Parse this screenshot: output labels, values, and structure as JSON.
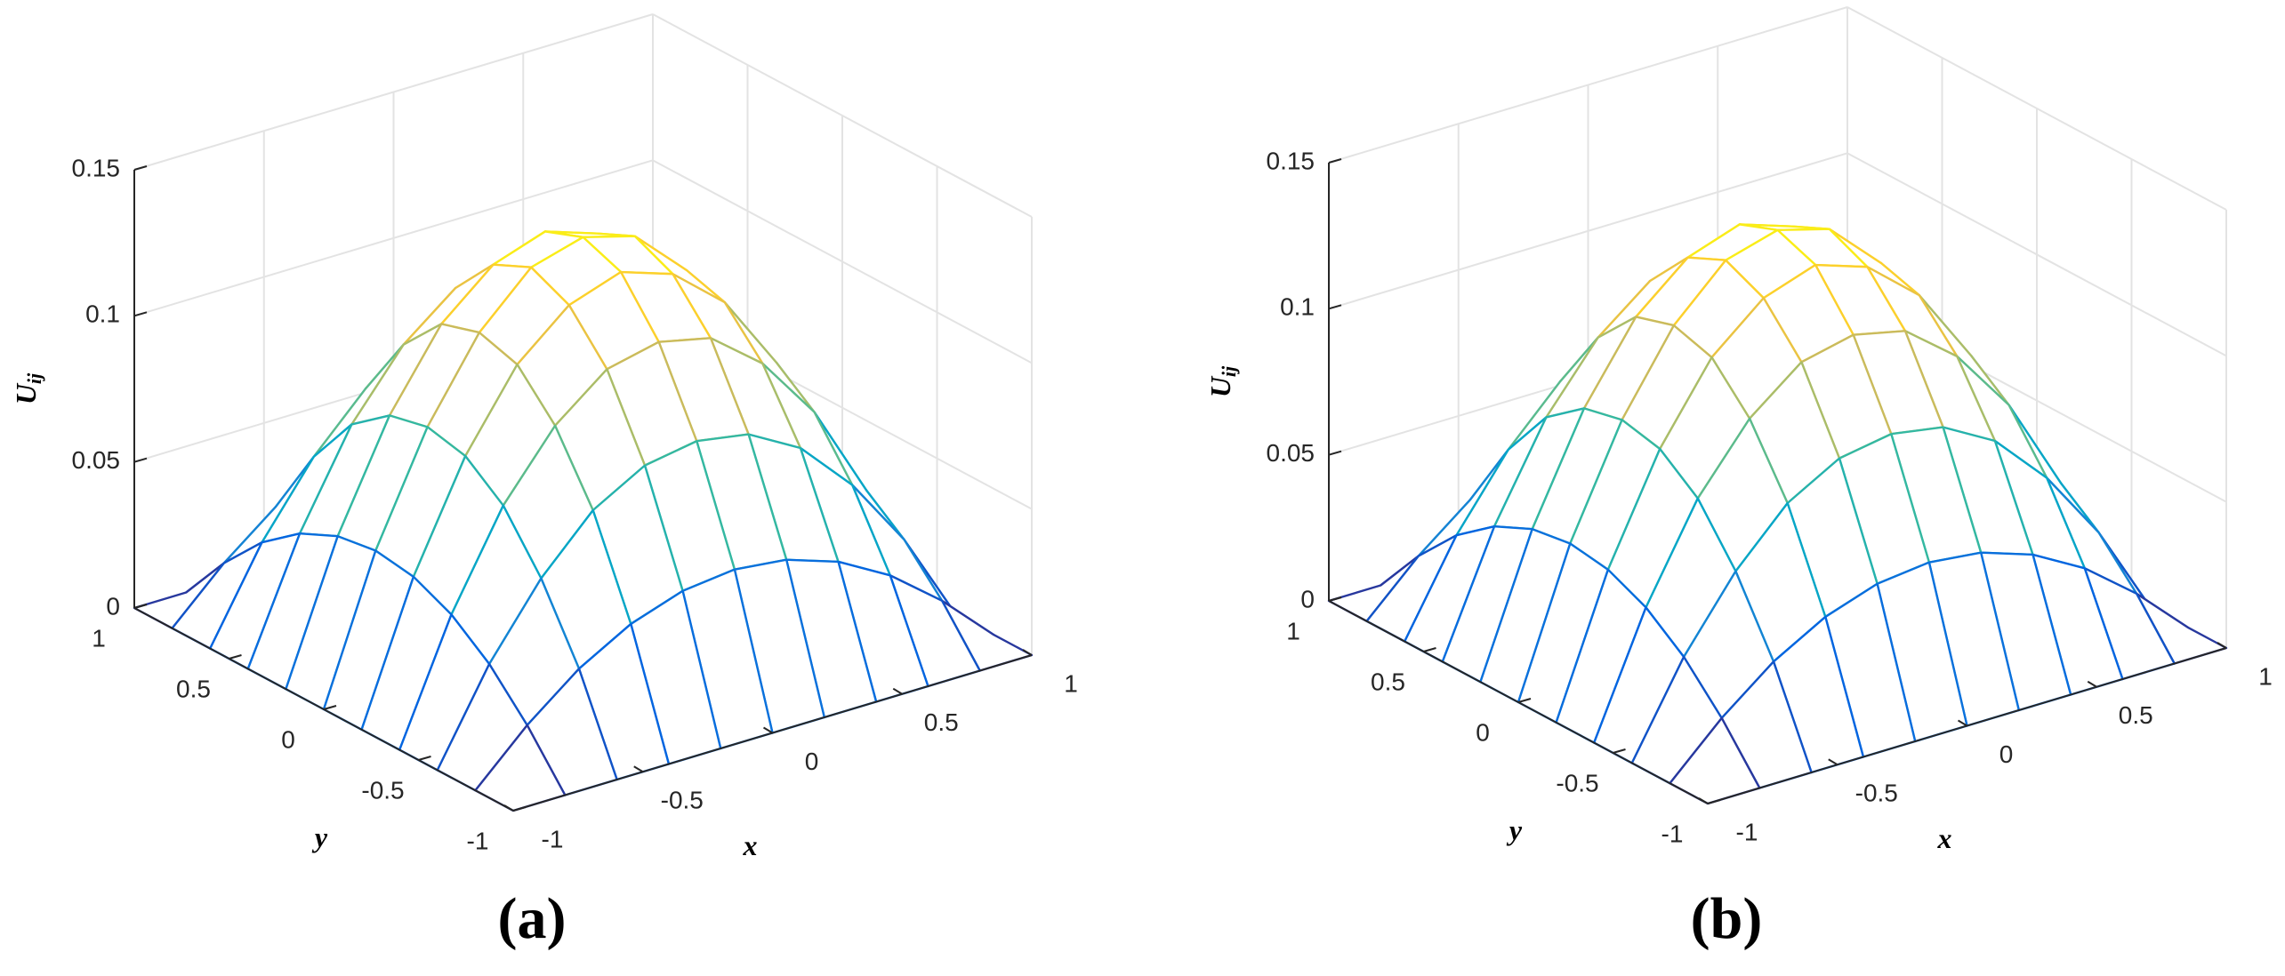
{
  "chart_data": [
    {
      "type": "surface",
      "caption": "(a)",
      "xlabel": "x",
      "ylabel": "y",
      "zlabel": {
        "base": "U",
        "sub": "ij"
      },
      "x": [
        -1,
        -0.8,
        -0.6,
        -0.4,
        -0.2,
        0,
        0.2,
        0.4,
        0.6,
        0.8,
        1
      ],
      "y": [
        -1,
        -0.8,
        -0.6,
        -0.4,
        -0.2,
        0,
        0.2,
        0.4,
        0.6,
        0.8,
        1
      ],
      "z": [
        [
          0,
          0,
          0,
          0,
          0,
          0,
          0,
          0,
          0,
          0,
          0
        ],
        [
          0,
          0.017,
          0.031,
          0.041,
          0.047,
          0.049,
          0.047,
          0.041,
          0.031,
          0.017,
          0
        ],
        [
          0,
          0.031,
          0.055,
          0.073,
          0.083,
          0.086,
          0.083,
          0.073,
          0.055,
          0.031,
          0
        ],
        [
          0,
          0.041,
          0.073,
          0.095,
          0.109,
          0.113,
          0.109,
          0.095,
          0.073,
          0.041,
          0
        ],
        [
          0,
          0.047,
          0.083,
          0.109,
          0.124,
          0.13,
          0.124,
          0.109,
          0.083,
          0.047,
          0
        ],
        [
          0,
          0.049,
          0.086,
          0.113,
          0.13,
          0.135,
          0.13,
          0.113,
          0.086,
          0.049,
          0
        ],
        [
          0,
          0.047,
          0.083,
          0.109,
          0.124,
          0.13,
          0.124,
          0.109,
          0.083,
          0.047,
          0
        ],
        [
          0,
          0.041,
          0.073,
          0.095,
          0.109,
          0.113,
          0.109,
          0.095,
          0.073,
          0.041,
          0
        ],
        [
          0,
          0.031,
          0.055,
          0.073,
          0.083,
          0.086,
          0.083,
          0.073,
          0.055,
          0.031,
          0
        ],
        [
          0,
          0.017,
          0.031,
          0.041,
          0.047,
          0.049,
          0.047,
          0.041,
          0.031,
          0.017,
          0
        ],
        [
          0,
          0,
          0,
          0,
          0,
          0,
          0,
          0,
          0,
          0,
          0
        ]
      ],
      "xlim": [
        -1,
        1
      ],
      "ylim": [
        -1,
        1
      ],
      "zlim": [
        0,
        0.15
      ],
      "xticks": [
        -1,
        -0.5,
        0,
        0.5,
        1
      ],
      "yticks": [
        -1,
        -0.5,
        0,
        0.5,
        1
      ],
      "zticks": [
        0,
        0.05,
        0.1,
        0.15
      ],
      "grid": true,
      "colormap": [
        "#352a87",
        "#0363e1",
        "#1485d4",
        "#06a7c6",
        "#38b99e",
        "#92bf73",
        "#d9ba56",
        "#fcce2e",
        "#f9fb0e"
      ]
    },
    {
      "type": "surface",
      "caption": "(b)",
      "xlabel": "x",
      "ylabel": "y",
      "zlabel": {
        "base": "U",
        "sub": "ij"
      },
      "x": [
        -1,
        -0.8,
        -0.6,
        -0.4,
        -0.2,
        0,
        0.2,
        0.4,
        0.6,
        0.8,
        1
      ],
      "y": [
        -1,
        -0.8,
        -0.6,
        -0.4,
        -0.2,
        0,
        0.2,
        0.4,
        0.6,
        0.8,
        1
      ],
      "z": [
        [
          0,
          0,
          0,
          0,
          0,
          0,
          0,
          0,
          0,
          0,
          0
        ],
        [
          0,
          0.017,
          0.031,
          0.041,
          0.047,
          0.049,
          0.047,
          0.041,
          0.031,
          0.017,
          0
        ],
        [
          0,
          0.031,
          0.055,
          0.073,
          0.083,
          0.086,
          0.083,
          0.073,
          0.055,
          0.031,
          0
        ],
        [
          0,
          0.041,
          0.073,
          0.095,
          0.109,
          0.113,
          0.109,
          0.095,
          0.073,
          0.041,
          0
        ],
        [
          0,
          0.047,
          0.083,
          0.109,
          0.124,
          0.13,
          0.124,
          0.109,
          0.083,
          0.047,
          0
        ],
        [
          0,
          0.049,
          0.086,
          0.113,
          0.13,
          0.135,
          0.13,
          0.113,
          0.086,
          0.049,
          0
        ],
        [
          0,
          0.047,
          0.083,
          0.109,
          0.124,
          0.13,
          0.124,
          0.109,
          0.083,
          0.047,
          0
        ],
        [
          0,
          0.041,
          0.073,
          0.095,
          0.109,
          0.113,
          0.109,
          0.095,
          0.073,
          0.041,
          0
        ],
        [
          0,
          0.031,
          0.055,
          0.073,
          0.083,
          0.086,
          0.083,
          0.073,
          0.055,
          0.031,
          0
        ],
        [
          0,
          0.017,
          0.031,
          0.041,
          0.047,
          0.049,
          0.047,
          0.041,
          0.031,
          0.017,
          0
        ],
        [
          0,
          0,
          0,
          0,
          0,
          0,
          0,
          0,
          0,
          0,
          0
        ]
      ],
      "xlim": [
        -1,
        1
      ],
      "ylim": [
        -1,
        1
      ],
      "zlim": [
        0,
        0.15
      ],
      "xticks": [
        -1,
        -0.5,
        0,
        0.5,
        1
      ],
      "yticks": [
        -1,
        -0.5,
        0,
        0.5,
        1
      ],
      "zticks": [
        0,
        0.05,
        0.1,
        0.15
      ],
      "grid": true,
      "colormap": [
        "#352a87",
        "#0363e1",
        "#1485d4",
        "#06a7c6",
        "#38b99e",
        "#92bf73",
        "#d9ba56",
        "#fcce2e",
        "#f9fb0e"
      ]
    }
  ]
}
